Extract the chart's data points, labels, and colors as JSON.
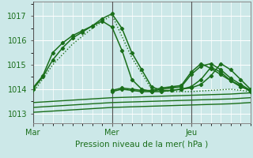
{
  "title": "Pression niveau de la mer( hPa )",
  "ylim": [
    1012.6,
    1017.6
  ],
  "yticks": [
    1013,
    1014,
    1015,
    1016,
    1017
  ],
  "day_labels": [
    "Mar",
    "Mer",
    "Jeu"
  ],
  "day_positions": [
    0,
    24,
    48
  ],
  "xlim": [
    0,
    66
  ],
  "bg_color": "#cce8e8",
  "grid_color": "#ffffff",
  "line_color": "#1a6e1a",
  "text_color": "#1a6e1a",
  "series": [
    {
      "x": [
        0,
        3,
        6,
        9,
        12,
        15,
        18,
        21,
        24,
        27,
        30,
        33,
        36,
        39,
        42,
        45,
        48,
        51,
        54,
        57,
        60,
        63,
        66
      ],
      "y": [
        1014.0,
        1014.5,
        1015.2,
        1015.7,
        1016.1,
        1016.35,
        1016.6,
        1016.9,
        1017.1,
        1016.5,
        1015.5,
        1014.8,
        1014.1,
        1013.95,
        1013.95,
        1014.0,
        1014.05,
        1014.2,
        1014.55,
        1015.05,
        1014.8,
        1014.4,
        1014.0
      ],
      "style": "-",
      "marker": "D",
      "markersize": 2.2,
      "lw": 1.1
    },
    {
      "x": [
        0,
        6,
        12,
        18,
        24,
        30,
        36,
        42,
        48,
        54,
        60,
        66
      ],
      "y": [
        1013.85,
        1015.0,
        1015.85,
        1016.5,
        1017.05,
        1015.3,
        1014.0,
        1013.9,
        1013.9,
        1013.95,
        1014.0,
        1013.9
      ],
      "style": ":",
      "marker": null,
      "markersize": 0,
      "lw": 1.0
    },
    {
      "x": [
        0,
        3,
        6,
        9,
        12,
        15,
        18,
        21,
        24,
        27,
        30,
        33,
        36,
        39,
        42,
        45,
        48,
        51,
        54,
        57,
        60,
        63,
        66
      ],
      "y": [
        1014.05,
        1014.55,
        1015.5,
        1015.9,
        1016.2,
        1016.4,
        1016.6,
        1016.8,
        1016.55,
        1015.6,
        1014.4,
        1014.0,
        1013.9,
        1013.9,
        1013.95,
        1014.0,
        1014.1,
        1014.4,
        1014.9,
        1014.7,
        1014.35,
        1014.1,
        1013.95
      ],
      "style": "-",
      "marker": "D",
      "markersize": 2.2,
      "lw": 1.1
    },
    {
      "x": [
        0,
        12,
        24,
        36,
        48,
        60,
        66
      ],
      "y": [
        1013.45,
        1013.55,
        1013.65,
        1013.7,
        1013.75,
        1013.8,
        1013.85
      ],
      "style": "-",
      "marker": null,
      "markersize": 0,
      "lw": 1.0
    },
    {
      "x": [
        0,
        12,
        24,
        36,
        48,
        60,
        66
      ],
      "y": [
        1013.25,
        1013.35,
        1013.45,
        1013.5,
        1013.55,
        1013.6,
        1013.65
      ],
      "style": "-",
      "marker": null,
      "markersize": 0,
      "lw": 1.0
    },
    {
      "x": [
        0,
        12,
        24,
        36,
        48,
        60,
        66
      ],
      "y": [
        1013.05,
        1013.15,
        1013.25,
        1013.3,
        1013.35,
        1013.4,
        1013.45
      ],
      "style": "-",
      "marker": null,
      "markersize": 0,
      "lw": 1.0
    },
    {
      "x": [
        24,
        27,
        30,
        33,
        36,
        39,
        42,
        45,
        48,
        51,
        54,
        57,
        60,
        63,
        66
      ],
      "y": [
        1013.9,
        1014.0,
        1013.95,
        1013.9,
        1013.9,
        1014.0,
        1014.05,
        1014.1,
        1014.6,
        1014.95,
        1015.05,
        1014.8,
        1014.45,
        1014.2,
        1013.95
      ],
      "style": "-",
      "marker": "D",
      "markersize": 2.2,
      "lw": 1.1
    },
    {
      "x": [
        24,
        27,
        30,
        33,
        36,
        39,
        42,
        45,
        48,
        51,
        54,
        57,
        60,
        63,
        66
      ],
      "y": [
        1013.95,
        1014.05,
        1014.0,
        1013.95,
        1013.95,
        1014.05,
        1014.1,
        1014.15,
        1014.7,
        1015.05,
        1014.85,
        1014.6,
        1014.35,
        1014.15,
        1013.9
      ],
      "style": "-",
      "marker": "D",
      "markersize": 2.2,
      "lw": 1.1
    }
  ]
}
